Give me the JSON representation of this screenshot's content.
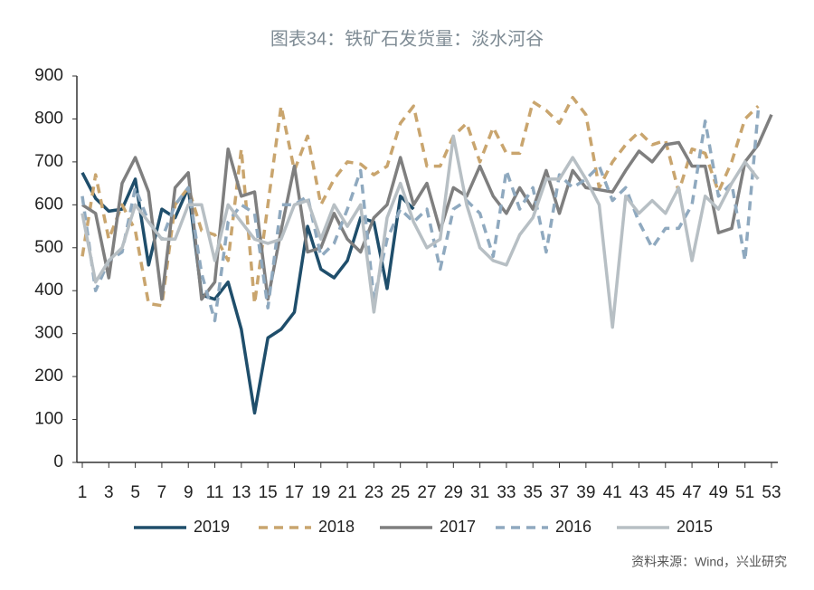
{
  "chart_data": {
    "type": "line",
    "title": "图表34：铁矿石发货量：淡水河谷",
    "source": "资料来源：Wind，兴业研究",
    "x": [
      1,
      2,
      3,
      4,
      5,
      6,
      7,
      8,
      9,
      10,
      11,
      12,
      13,
      14,
      15,
      16,
      17,
      18,
      19,
      20,
      21,
      22,
      23,
      24,
      25,
      26,
      27,
      28,
      29,
      30,
      31,
      32,
      33,
      34,
      35,
      36,
      37,
      38,
      39,
      40,
      41,
      42,
      43,
      44,
      45,
      46,
      47,
      48,
      49,
      50,
      51,
      52,
      53
    ],
    "xlim": [
      1,
      53
    ],
    "xticks": [
      1,
      3,
      5,
      7,
      9,
      11,
      13,
      15,
      17,
      19,
      21,
      23,
      25,
      27,
      29,
      31,
      33,
      35,
      37,
      39,
      41,
      43,
      45,
      47,
      49,
      51,
      53
    ],
    "ylim": [
      0,
      900
    ],
    "yticks": [
      0,
      100,
      200,
      300,
      400,
      500,
      600,
      700,
      800,
      900
    ],
    "grid": false,
    "legend": "bottom",
    "series": [
      {
        "name": "2019",
        "color": "#1f4e6b",
        "dash": false,
        "values": [
          675,
          615,
          585,
          590,
          660,
          460,
          590,
          570,
          640,
          390,
          380,
          420,
          310,
          115,
          290,
          310,
          350,
          550,
          450,
          430,
          470,
          570,
          560,
          405,
          620,
          590,
          null,
          null,
          null,
          null,
          null,
          null,
          null,
          null,
          null,
          null,
          null,
          null,
          null,
          null,
          null,
          null,
          null,
          null,
          null,
          null,
          null,
          null,
          null,
          null,
          null,
          null,
          null
        ]
      },
      {
        "name": "2018",
        "color": "#c9a56e",
        "dash": true,
        "values": [
          480,
          670,
          520,
          600,
          540,
          370,
          365,
          600,
          640,
          540,
          530,
          470,
          730,
          370,
          600,
          830,
          680,
          760,
          600,
          660,
          700,
          695,
          670,
          690,
          790,
          830,
          690,
          690,
          760,
          790,
          700,
          780,
          720,
          720,
          840,
          820,
          790,
          850,
          810,
          640,
          700,
          740,
          770,
          740,
          750,
          630,
          730,
          720,
          630,
          700,
          800,
          830,
          null
        ]
      },
      {
        "name": "2017",
        "color": "#7f7f7f",
        "dash": false,
        "values": [
          600,
          580,
          430,
          650,
          710,
          630,
          380,
          640,
          675,
          380,
          420,
          730,
          620,
          630,
          380,
          540,
          690,
          490,
          500,
          580,
          520,
          490,
          570,
          600,
          710,
          600,
          650,
          540,
          640,
          620,
          690,
          620,
          580,
          640,
          590,
          680,
          580,
          680,
          640,
          635,
          630,
          680,
          725,
          700,
          740,
          745,
          690,
          690,
          535,
          545,
          700,
          740,
          810
        ]
      },
      {
        "name": "2016",
        "color": "#8fa9bf",
        "dash": true,
        "values": [
          620,
          400,
          470,
          490,
          640,
          560,
          520,
          600,
          640,
          440,
          330,
          560,
          600,
          580,
          360,
          600,
          600,
          620,
          480,
          510,
          590,
          680,
          380,
          520,
          590,
          560,
          590,
          450,
          590,
          610,
          580,
          480,
          680,
          590,
          640,
          490,
          670,
          640,
          660,
          690,
          610,
          640,
          560,
          500,
          545,
          545,
          600,
          795,
          620,
          650,
          470,
          820,
          null
        ]
      },
      {
        "name": "2015",
        "color": "#b7bfc4",
        "dash": false,
        "values": [
          580,
          420,
          470,
          500,
          600,
          560,
          520,
          520,
          600,
          600,
          470,
          600,
          560,
          520,
          510,
          520,
          600,
          610,
          520,
          600,
          550,
          600,
          350,
          570,
          650,
          560,
          500,
          520,
          760,
          600,
          500,
          470,
          460,
          530,
          570,
          660,
          660,
          710,
          660,
          600,
          315,
          620,
          580,
          610,
          580,
          640,
          470,
          620,
          590,
          650,
          700,
          660,
          null
        ]
      }
    ]
  }
}
